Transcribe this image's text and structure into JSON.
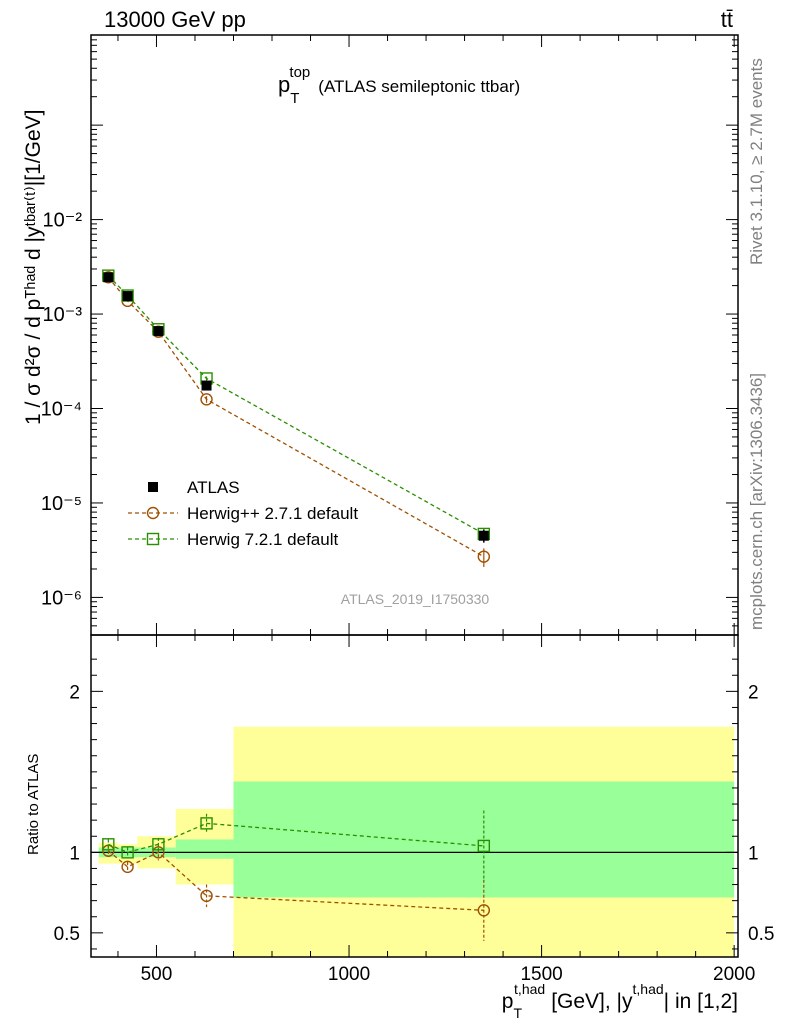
{
  "header": {
    "left": "13000 GeV pp",
    "right": "tt̄"
  },
  "side_labels": {
    "rivet": "Rivet 3.1.10, ≥ 2.7M events",
    "mcplots": "mcplots.cern.ch [arXiv:1306.3436]"
  },
  "watermark": "ATLAS_2019_I1750330",
  "plot_title": {
    "main": "p",
    "sub": "T",
    "sup": "top",
    "rest": "(ATLAS semileptonic ttbar)"
  },
  "ylabel_main": "1 / σ d²σ / d pᵀʰᵃᵈ d |yᵗᵇᵃʳ⁽ᵗ⁾|[1/GeV]",
  "ylabel_ratio": "Ratio to ATLAS",
  "xlabel": {
    "p": "p",
    "T": "T",
    "thad": "t,had",
    "mid": "[GeV], |y",
    "thad2": "t,had",
    "end": "| in [1,2]"
  },
  "legend": [
    {
      "label": "ATLAS",
      "marker": "filled-square",
      "color": "#000000"
    },
    {
      "label": "Herwig++ 2.7.1 default",
      "marker": "open-circle",
      "color": "#a05000"
    },
    {
      "label": "Herwig 7.2.1 default",
      "marker": "open-square",
      "color": "#2a8f00"
    }
  ],
  "chart_data": {
    "type": "scatter",
    "xlim": [
      330,
      2010
    ],
    "main_ylim": [
      4e-07,
      0.9
    ],
    "main_log_y": true,
    "ratio_ylim": [
      0.35,
      2.35
    ],
    "main_y_tick_labels": [
      "10⁻⁶",
      "10⁻⁵",
      "10⁻⁴",
      "10⁻³",
      "10⁻²"
    ],
    "x_tick_labels": [
      "500",
      "1000",
      "1500",
      "2000"
    ],
    "ratio_y_tick_labels": [
      "0.5",
      "1",
      "2"
    ],
    "bins": [
      {
        "lo": 350,
        "hi": 400
      },
      {
        "lo": 400,
        "hi": 450
      },
      {
        "lo": 450,
        "hi": 550
      },
      {
        "lo": 550,
        "hi": 700
      },
      {
        "lo": 700,
        "hi": 2000
      }
    ],
    "data": {
      "name": "ATLAS",
      "x": [
        375,
        425,
        505,
        630,
        1350
      ],
      "y": [
        0.00245,
        0.00155,
        0.00066,
        0.000175,
        4.5e-06
      ],
      "yerr": [
        0.00015,
        0.0001,
        4e-05,
        1.5e-05,
        7e-07
      ]
    },
    "series": [
      {
        "name": "Herwig++ 2.7.1 default",
        "color": "#a05000",
        "marker": "open-circle",
        "x": [
          375,
          425,
          505,
          630,
          1350
        ],
        "y": [
          0.00245,
          0.00138,
          0.00065,
          0.000125,
          2.7e-06
        ],
        "yerr": [
          5e-05,
          4e-05,
          3e-05,
          1e-05,
          6e-07
        ],
        "ratio": [
          1.01,
          0.91,
          1.0,
          0.73,
          0.64
        ],
        "ratio_err": [
          0.03,
          0.03,
          0.05,
          0.07,
          0.19
        ]
      },
      {
        "name": "Herwig 7.2.1 default",
        "color": "#2a8f00",
        "marker": "open-square",
        "x": [
          375,
          425,
          505,
          630,
          1350
        ],
        "y": [
          0.00255,
          0.00157,
          0.00069,
          0.000208,
          4.7e-06
        ],
        "yerr": [
          5e-05,
          4e-05,
          3e-05,
          1e-05,
          6e-07
        ],
        "ratio": [
          1.05,
          1.0,
          1.05,
          1.18,
          1.04
        ],
        "ratio_err": [
          0.03,
          0.03,
          0.04,
          0.06,
          0.22
        ]
      }
    ],
    "uncertainty_bands": {
      "inner_color": "#99ff99",
      "outer_color": "#ffff99",
      "inner": [
        {
          "lo": 350,
          "hi": 400,
          "down": 0.97,
          "up": 1.03
        },
        {
          "lo": 400,
          "hi": 450,
          "down": 0.97,
          "up": 1.03
        },
        {
          "lo": 450,
          "hi": 550,
          "down": 0.97,
          "up": 1.03
        },
        {
          "lo": 550,
          "hi": 700,
          "down": 0.96,
          "up": 1.08
        },
        {
          "lo": 700,
          "hi": 2000,
          "down": 0.72,
          "up": 1.44
        }
      ],
      "outer": [
        {
          "lo": 350,
          "hi": 400,
          "down": 0.93,
          "up": 1.06
        },
        {
          "lo": 400,
          "hi": 450,
          "down": 0.93,
          "up": 1.05
        },
        {
          "lo": 450,
          "hi": 550,
          "down": 0.9,
          "up": 1.1
        },
        {
          "lo": 550,
          "hi": 700,
          "down": 0.8,
          "up": 1.27
        },
        {
          "lo": 700,
          "hi": 2000,
          "down": 0.35,
          "up": 1.78
        }
      ]
    }
  }
}
